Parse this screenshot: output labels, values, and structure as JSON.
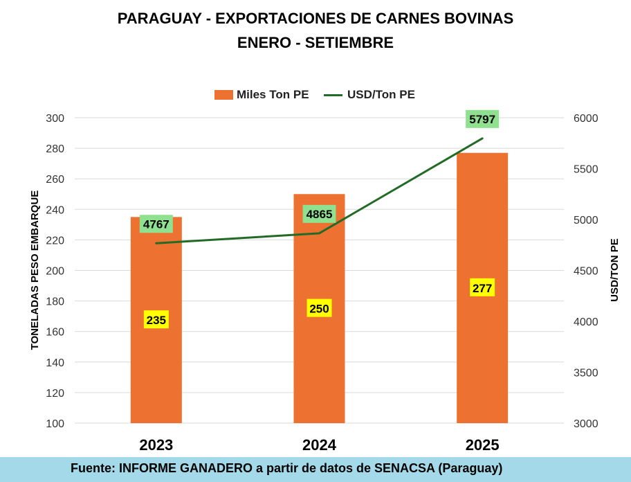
{
  "chart_data": {
    "type": "bar",
    "title": "PARAGUAY - EXPORTACIONES DE CARNES BOVINAS",
    "subtitle": "ENERO - SETIEMBRE",
    "categories": [
      "2023",
      "2024",
      "2025"
    ],
    "series": [
      {
        "name": "Miles Ton PE",
        "type": "bar",
        "axis": "left",
        "values": [
          235,
          250,
          277
        ],
        "labels": [
          "235",
          "250",
          "277"
        ],
        "color": "#ed7130"
      },
      {
        "name": "USD/Ton PE",
        "type": "line",
        "axis": "right",
        "values": [
          4767,
          4865,
          5797
        ],
        "labels": [
          "4767",
          "4865",
          "5797"
        ],
        "color": "#226b26"
      }
    ],
    "ylabel": "TONELADAS PESO EMBARQUE",
    "y2label": "USD/TON PE",
    "ylim": [
      100,
      300
    ],
    "y2lim": [
      3000,
      6000
    ],
    "yticks": [
      "100",
      "120",
      "140",
      "160",
      "180",
      "200",
      "220",
      "240",
      "260",
      "280",
      "300"
    ],
    "y2ticks": [
      "3000",
      "3500",
      "4000",
      "4500",
      "5000",
      "5500",
      "6000"
    ],
    "grid": true,
    "legend": "top-center"
  },
  "footer": {
    "source": "Fuente: INFORME GANADERO a partir de datos de SENACSA (Paraguay)"
  },
  "colors": {
    "bar_label_bg": "#ffff00",
    "line_label_bg": "#8fe08f",
    "footer_bg": "#a3d9e8"
  }
}
